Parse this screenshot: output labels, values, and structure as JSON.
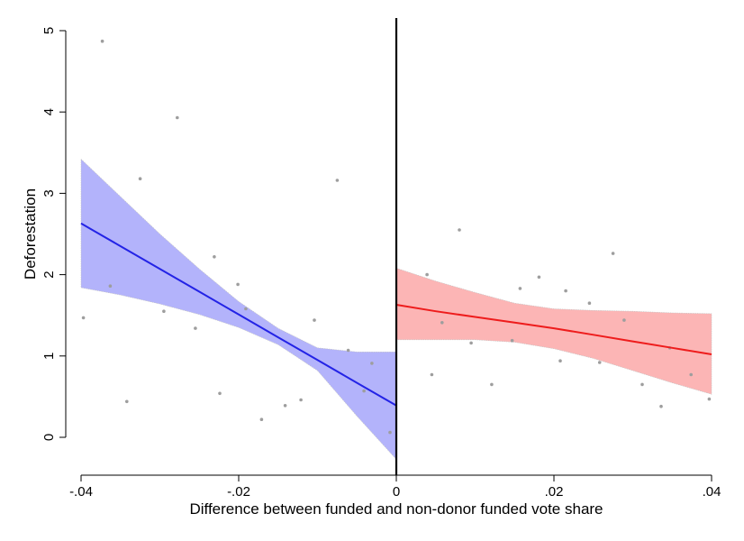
{
  "chart_data": {
    "type": "scatter",
    "title": "",
    "xlabel": "Difference between funded and non-donor funded vote share",
    "ylabel": "Deforestation",
    "xlim": [
      -0.04,
      0.04
    ],
    "ylim": [
      0,
      5
    ],
    "x_ticks": [
      -0.04,
      -0.02,
      0,
      0.02,
      0.04
    ],
    "x_tick_labels": [
      "-.04",
      "-.02",
      "0",
      ".02",
      ".04"
    ],
    "y_ticks": [
      0,
      1,
      2,
      3,
      4,
      5
    ],
    "y_tick_labels": [
      "0",
      "1",
      "2",
      "3",
      "4",
      "5"
    ],
    "cutoff": 0,
    "grid": false,
    "points": [
      {
        "x": -0.0397,
        "y": 1.47
      },
      {
        "x": -0.0373,
        "y": 4.87
      },
      {
        "x": -0.0363,
        "y": 1.86
      },
      {
        "x": -0.0342,
        "y": 0.44
      },
      {
        "x": -0.0325,
        "y": 3.18
      },
      {
        "x": -0.0295,
        "y": 1.55
      },
      {
        "x": -0.0278,
        "y": 3.93
      },
      {
        "x": -0.0255,
        "y": 1.34
      },
      {
        "x": -0.0231,
        "y": 2.22
      },
      {
        "x": -0.0224,
        "y": 0.54
      },
      {
        "x": -0.0201,
        "y": 1.88
      },
      {
        "x": -0.0191,
        "y": 1.58
      },
      {
        "x": -0.0171,
        "y": 0.22
      },
      {
        "x": -0.0141,
        "y": 0.39
      },
      {
        "x": -0.0121,
        "y": 0.46
      },
      {
        "x": -0.0104,
        "y": 1.44
      },
      {
        "x": -0.0075,
        "y": 3.16
      },
      {
        "x": -0.0061,
        "y": 1.07
      },
      {
        "x": -0.0041,
        "y": 0.57
      },
      {
        "x": -0.0031,
        "y": 0.91
      },
      {
        "x": -0.0008,
        "y": 0.06
      },
      {
        "x": 0.0039,
        "y": 2.0
      },
      {
        "x": 0.0045,
        "y": 0.77
      },
      {
        "x": 0.0058,
        "y": 1.41
      },
      {
        "x": 0.008,
        "y": 2.55
      },
      {
        "x": 0.0095,
        "y": 1.16
      },
      {
        "x": 0.0121,
        "y": 0.65
      },
      {
        "x": 0.0147,
        "y": 1.19
      },
      {
        "x": 0.0157,
        "y": 1.83
      },
      {
        "x": 0.0181,
        "y": 1.97
      },
      {
        "x": 0.0208,
        "y": 0.94
      },
      {
        "x": 0.0215,
        "y": 1.8
      },
      {
        "x": 0.0245,
        "y": 1.65
      },
      {
        "x": 0.0258,
        "y": 0.92
      },
      {
        "x": 0.0275,
        "y": 2.26
      },
      {
        "x": 0.0289,
        "y": 1.44
      },
      {
        "x": 0.0312,
        "y": 0.65
      },
      {
        "x": 0.0336,
        "y": 0.38
      },
      {
        "x": 0.0347,
        "y": 1.1
      },
      {
        "x": 0.0374,
        "y": 0.77
      },
      {
        "x": 0.0397,
        "y": 0.47
      }
    ],
    "fits": [
      {
        "side": "left",
        "color": "#2323e6",
        "band_color": "#b3b3fb",
        "x": [
          -0.04,
          -0.035,
          -0.03,
          -0.025,
          -0.02,
          -0.015,
          -0.01,
          -0.005,
          0.0
        ],
        "fit": [
          2.63,
          2.35,
          2.07,
          1.79,
          1.51,
          1.23,
          0.95,
          0.67,
          0.39
        ],
        "lower": [
          1.84,
          1.75,
          1.64,
          1.51,
          1.35,
          1.14,
          0.82,
          0.26,
          -0.27
        ],
        "upper": [
          3.42,
          2.96,
          2.5,
          2.07,
          1.67,
          1.34,
          1.1,
          1.05,
          1.05
        ]
      },
      {
        "side": "right",
        "color": "#ee1c1c",
        "band_color": "#fcb5b5",
        "x": [
          0.0,
          0.005,
          0.01,
          0.015,
          0.02,
          0.025,
          0.03,
          0.035,
          0.04
        ],
        "fit": [
          1.63,
          1.55,
          1.48,
          1.41,
          1.34,
          1.26,
          1.18,
          1.1,
          1.02
        ],
        "lower": [
          1.2,
          1.2,
          1.2,
          1.17,
          1.09,
          0.97,
          0.82,
          0.67,
          0.53
        ],
        "upper": [
          2.08,
          1.92,
          1.78,
          1.65,
          1.58,
          1.56,
          1.55,
          1.53,
          1.52
        ]
      }
    ]
  },
  "colors": {
    "axis": "#000000",
    "point": "#9e9e9e"
  }
}
